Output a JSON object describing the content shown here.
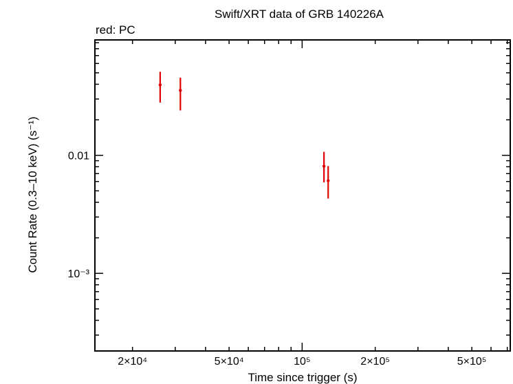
{
  "chart_data": {
    "type": "scatter",
    "title": "Swift/XRT data of GRB 140226A",
    "subtitle": "red: PC",
    "xlabel": "Time since trigger (s)",
    "ylabel": "Count Rate (0.3–10 keV) (s⁻¹)",
    "x_scale": "log",
    "y_scale": "log",
    "xlim": [
      14000,
      720000
    ],
    "ylim": [
      0.00022,
      0.095
    ],
    "x_tick_labels": [
      {
        "value": 20000,
        "label": "2×10⁴"
      },
      {
        "value": 50000,
        "label": "5×10⁴"
      },
      {
        "value": 100000,
        "label": "10⁵"
      },
      {
        "value": 200000,
        "label": "2×10⁵"
      },
      {
        "value": 500000,
        "label": "5×10⁵"
      }
    ],
    "y_tick_labels": [
      {
        "value": 0.01,
        "label": "0.01"
      },
      {
        "value": 0.001,
        "label": "10⁻³"
      }
    ],
    "grid": false,
    "series": [
      {
        "color": "#e00000",
        "points": [
          {
            "x": 26000,
            "y": 0.0395,
            "y_err_low": 0.028,
            "y_err_high": 0.051
          },
          {
            "x": 31500,
            "y": 0.0355,
            "y_err_low": 0.024,
            "y_err_high": 0.0455
          },
          {
            "x": 123000,
            "y": 0.0081,
            "y_err_low": 0.0059,
            "y_err_high": 0.0107
          },
          {
            "x": 128000,
            "y": 0.0061,
            "y_err_low": 0.0043,
            "y_err_high": 0.0081
          }
        ]
      }
    ]
  }
}
